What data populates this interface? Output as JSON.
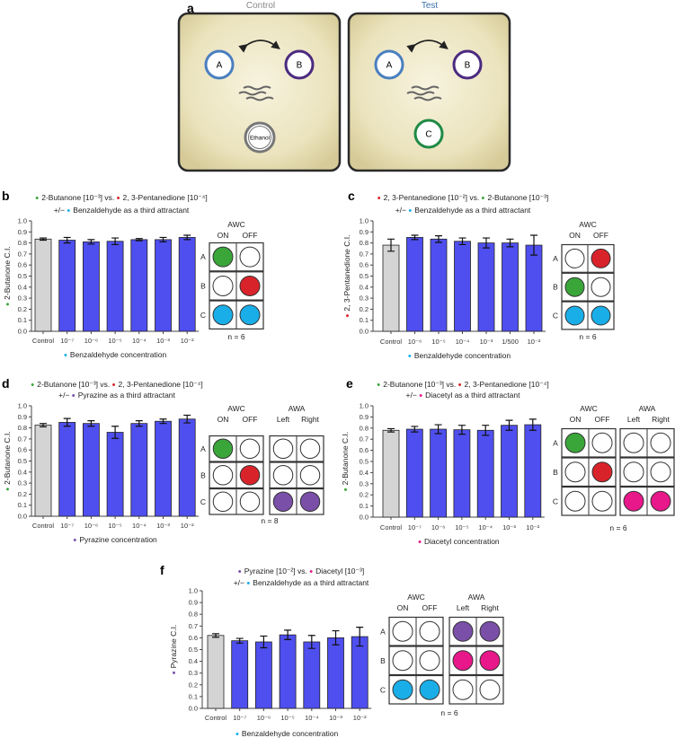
{
  "colors": {
    "bar": "#4f4ff0",
    "control_bar": "#d4d4d4",
    "green": "#3aa63a",
    "red": "#d9232a",
    "cyan": "#19aee8",
    "purple": "#7a4fa8",
    "magenta": "#e8178a",
    "white": "#ffffff"
  },
  "panel_a": {
    "letter": "a",
    "control": {
      "title": "Control",
      "spots": [
        "A",
        "B",
        "Ethanol"
      ]
    },
    "test": {
      "title": "Test",
      "spots": [
        "A",
        "B",
        "C"
      ]
    },
    "title_colors": {
      "control": "#888888",
      "test": "#3a6fa8"
    }
  },
  "chart_data": [
    {
      "panel": "b",
      "type": "bar",
      "title": [
        [
          {
            "dot": "green",
            "text": "2-Butanone [10⁻³] vs. "
          },
          {
            "dot": "red",
            "text": "2, 3-Pentanedione [10⁻⁴]"
          }
        ],
        [
          {
            "prefix": "+/− ",
            "dot": "cyan",
            "text": "Benzaldehyde as a third attractant"
          }
        ]
      ],
      "ylabel": {
        "dot": "green",
        "text": "2-Butanone C.I."
      },
      "xlabel": {
        "dot": "cyan",
        "text": "Benzaldehyde concentration"
      },
      "ylim": [
        0,
        1
      ],
      "yticks": [
        "0.0",
        "0.1",
        "0.2",
        "0.3",
        "0.4",
        "0.5",
        "0.6",
        "0.7",
        "0.8",
        "0.9",
        "1.0"
      ],
      "categories": [
        "Control",
        "10⁻⁷",
        "10⁻⁶",
        "10⁻⁵",
        "10⁻⁴",
        "10⁻³",
        "10⁻²"
      ],
      "values": [
        0.835,
        0.825,
        0.81,
        0.815,
        0.83,
        0.83,
        0.85
      ],
      "errors": [
        0.01,
        0.025,
        0.02,
        0.03,
        0.01,
        0.02,
        0.02
      ],
      "n_label": "n = 6",
      "grids": [
        {
          "header": "AWC",
          "cols": [
            "ON",
            "OFF"
          ],
          "rows": [
            "A",
            "B",
            "C"
          ],
          "cells": [
            [
              "green",
              "white"
            ],
            [
              "white",
              "red"
            ],
            [
              "cyan",
              "cyan"
            ]
          ]
        }
      ]
    },
    {
      "panel": "c",
      "type": "bar",
      "title": [
        [
          {
            "dot": "red",
            "text": "2, 3-Pentanedione [10⁻²] vs. "
          },
          {
            "dot": "green",
            "text": "2-Butanone [10⁻³]"
          }
        ],
        [
          {
            "prefix": "+/− ",
            "dot": "cyan",
            "text": "Benzaldehyde as a third attractant"
          }
        ]
      ],
      "ylabel": {
        "dot": "red",
        "text": "2, 3-Pentanedione C.I."
      },
      "xlabel": {
        "dot": "cyan",
        "text": "Benzaldehyde concentration"
      },
      "ylim": [
        0,
        1
      ],
      "yticks": [
        "0.0",
        "0.1",
        "0.2",
        "0.3",
        "0.4",
        "0.5",
        "0.6",
        "0.7",
        "0.8",
        "0.9",
        "1.0"
      ],
      "categories": [
        "Control",
        "10⁻⁶",
        "10⁻⁵",
        "10⁻⁴",
        "10⁻³",
        "1/500",
        "10⁻²"
      ],
      "values": [
        0.78,
        0.85,
        0.835,
        0.815,
        0.8,
        0.8,
        0.78
      ],
      "errors": [
        0.055,
        0.02,
        0.03,
        0.03,
        0.045,
        0.035,
        0.09
      ],
      "n_label": "n = 6",
      "grids": [
        {
          "header": "AWC",
          "cols": [
            "ON",
            "OFF"
          ],
          "rows": [
            "A",
            "B",
            "C"
          ],
          "cells": [
            [
              "white",
              "red"
            ],
            [
              "green",
              "white"
            ],
            [
              "cyan",
              "cyan"
            ]
          ]
        }
      ]
    },
    {
      "panel": "d",
      "type": "bar",
      "title": [
        [
          {
            "dot": "green",
            "text": "2-Butanone [10⁻³] vs. "
          },
          {
            "dot": "red",
            "text": "2, 3-Pentanedione [10⁻⁴]"
          }
        ],
        [
          {
            "prefix": "+/− ",
            "dot": "purple",
            "text": "Pyrazine as a third attractant"
          }
        ]
      ],
      "ylabel": {
        "dot": "green",
        "text": "2-Butanone C.I."
      },
      "xlabel": {
        "dot": "purple",
        "text": "Pyrazine concentration"
      },
      "ylim": [
        0,
        1
      ],
      "yticks": [
        "0.0",
        "0.1",
        "0.2",
        "0.3",
        "0.4",
        "0.5",
        "0.6",
        "0.7",
        "0.8",
        "0.9",
        "1.0"
      ],
      "categories": [
        "Control",
        "10⁻⁷",
        "10⁻⁶",
        "10⁻⁵",
        "10⁻⁴",
        "10⁻³",
        "10⁻²"
      ],
      "values": [
        0.825,
        0.85,
        0.84,
        0.76,
        0.84,
        0.86,
        0.88
      ],
      "errors": [
        0.015,
        0.035,
        0.025,
        0.055,
        0.025,
        0.02,
        0.035
      ],
      "n_label": "n = 8",
      "grids": [
        {
          "header": "AWC",
          "cols": [
            "ON",
            "OFF"
          ],
          "rows": [
            "A",
            "B",
            "C"
          ],
          "cells": [
            [
              "green",
              "white"
            ],
            [
              "white",
              "red"
            ],
            [
              "white",
              "white"
            ]
          ]
        },
        {
          "header": "AWA",
          "cols": [
            "Left",
            "Right"
          ],
          "rows": [],
          "cells": [
            [
              "white",
              "white"
            ],
            [
              "white",
              "white"
            ],
            [
              "purple",
              "purple"
            ]
          ]
        }
      ]
    },
    {
      "panel": "e",
      "type": "bar",
      "title": [
        [
          {
            "dot": "green",
            "text": "2-Butanone [10⁻³] vs. "
          },
          {
            "dot": "red",
            "text": "2, 3-Pentanedione [10⁻⁴]"
          }
        ],
        [
          {
            "prefix": "+/− ",
            "dot": "magenta",
            "text": "Diacetyl as a third attractant"
          }
        ]
      ],
      "ylabel": {
        "dot": "green",
        "text": "2-Butanone C.I."
      },
      "xlabel": {
        "dot": "magenta",
        "text": "Diacetyl concentration"
      },
      "ylim": [
        0,
        1
      ],
      "yticks": [
        "0.0",
        "0.1",
        "0.2",
        "0.3",
        "0.4",
        "0.5",
        "0.6",
        "0.7",
        "0.8",
        "0.9",
        "1.0"
      ],
      "categories": [
        "Control",
        "10⁻⁷",
        "10⁻⁶",
        "10⁻⁵",
        "10⁻⁴",
        "10⁻³",
        "10⁻²"
      ],
      "values": [
        0.78,
        0.79,
        0.79,
        0.785,
        0.78,
        0.825,
        0.83
      ],
      "errors": [
        0.015,
        0.025,
        0.04,
        0.04,
        0.045,
        0.045,
        0.05
      ],
      "n_label": "n = 6",
      "grids": [
        {
          "header": "AWC",
          "cols": [
            "ON",
            "OFF"
          ],
          "rows": [
            "A",
            "B",
            "C"
          ],
          "cells": [
            [
              "green",
              "white"
            ],
            [
              "white",
              "red"
            ],
            [
              "white",
              "white"
            ]
          ]
        },
        {
          "header": "AWA",
          "cols": [
            "Left",
            "Right"
          ],
          "rows": [],
          "cells": [
            [
              "white",
              "white"
            ],
            [
              "white",
              "white"
            ],
            [
              "magenta",
              "magenta"
            ]
          ]
        }
      ]
    },
    {
      "panel": "f",
      "type": "bar",
      "title": [
        [
          {
            "dot": "purple",
            "text": "Pyrazine [10⁻²] vs. "
          },
          {
            "dot": "magenta",
            "text": "Diacetyl [10⁻³]"
          }
        ],
        [
          {
            "prefix": "+/− ",
            "dot": "cyan",
            "text": "Benzaldehyde as a third attractant"
          }
        ]
      ],
      "ylabel": {
        "dot": "purple",
        "text": "Pyrazine C.I."
      },
      "xlabel": {
        "dot": "cyan",
        "text": "Benzaldehyde concentration"
      },
      "ylim": [
        0,
        1
      ],
      "yticks": [
        "0.0",
        "0.1",
        "0.2",
        "0.3",
        "0.4",
        "0.5",
        "0.6",
        "0.7",
        "0.8",
        "0.9",
        "1.0"
      ],
      "categories": [
        "Control",
        "10⁻⁷",
        "10⁻⁶",
        "10⁻⁵",
        "10⁻⁴",
        "10⁻³",
        "10⁻²"
      ],
      "values": [
        0.62,
        0.575,
        0.565,
        0.625,
        0.565,
        0.6,
        0.61
      ],
      "errors": [
        0.015,
        0.02,
        0.05,
        0.04,
        0.055,
        0.06,
        0.08
      ],
      "n_label": "n = 6",
      "grids": [
        {
          "header": "AWC",
          "cols": [
            "ON",
            "OFF"
          ],
          "rows": [
            "A",
            "B",
            "C"
          ],
          "cells": [
            [
              "white",
              "white"
            ],
            [
              "white",
              "white"
            ],
            [
              "cyan",
              "cyan"
            ]
          ]
        },
        {
          "header": "AWA",
          "cols": [
            "Left",
            "Right"
          ],
          "rows": [],
          "cells": [
            [
              "purple",
              "purple"
            ],
            [
              "magenta",
              "magenta"
            ],
            [
              "white",
              "white"
            ]
          ]
        }
      ]
    }
  ]
}
